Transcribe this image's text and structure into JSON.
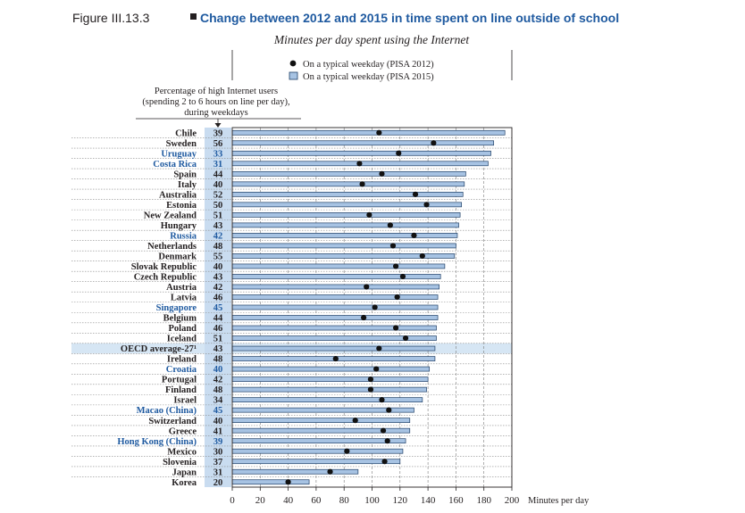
{
  "figure": {
    "label": "Figure III.13.3",
    "title": "Change between 2012 and 2015 in time spent on line outside of school",
    "subtitle": "Minutes per day spent using the Internet",
    "pct_header": [
      "Percentage of high Internet users",
      "(spending 2 to 6 hours on line per day),",
      "during weekdays"
    ],
    "x_unit": "Minutes per day"
  },
  "colors": {
    "bar_fill": "#a7c3e3",
    "bar_stroke": "#1f3f66",
    "partner_text": "#1f5aa0",
    "label_text": "#231f20",
    "highlight_band": "#d6e6f4",
    "pct_column": "#c9dcf0",
    "marker": "#111111"
  },
  "chart_data": {
    "type": "bar",
    "orientation": "horizontal",
    "title": "Change between 2012 and 2015 in time spent on line outside of school",
    "subtitle": "Minutes per day spent using the Internet",
    "xlabel": "Minutes per day",
    "xlim": [
      0,
      200
    ],
    "xticks": [
      0,
      20,
      40,
      60,
      80,
      100,
      120,
      140,
      160,
      180,
      200
    ],
    "grid": true,
    "legend_position": "top",
    "series": [
      {
        "name": "On a typical weekday (PISA 2012)",
        "type": "marker"
      },
      {
        "name": "On a typical weekday (PISA 2015)",
        "type": "bar"
      }
    ],
    "categories": [
      "Chile",
      "Sweden",
      "Uruguay",
      "Costa Rica",
      "Spain",
      "Italy",
      "Australia",
      "Estonia",
      "New Zealand",
      "Hungary",
      "Russia",
      "Netherlands",
      "Denmark",
      "Slovak Republic",
      "Czech Republic",
      "Austria",
      "Latvia",
      "Singapore",
      "Belgium",
      "Poland",
      "Iceland",
      "OECD average-27¹",
      "Ireland",
      "Croatia",
      "Portugal",
      "Finland",
      "Israel",
      "Macao (China)",
      "Switzerland",
      "Greece",
      "Hong Kong (China)",
      "Mexico",
      "Slovenia",
      "Japan",
      "Korea"
    ],
    "pct_high_users": [
      39,
      56,
      33,
      31,
      44,
      40,
      52,
      50,
      51,
      43,
      42,
      48,
      55,
      40,
      43,
      42,
      46,
      45,
      44,
      46,
      51,
      43,
      48,
      40,
      42,
      48,
      34,
      45,
      40,
      41,
      39,
      30,
      37,
      31,
      20
    ],
    "pisa_2015": [
      195,
      187,
      185,
      183,
      167,
      166,
      165,
      164,
      163,
      162,
      161,
      160,
      159,
      152,
      149,
      148,
      147,
      147,
      147,
      146,
      146,
      145,
      145,
      141,
      140,
      139,
      136,
      130,
      127,
      127,
      124,
      122,
      120,
      90,
      55
    ],
    "pisa_2012": [
      105,
      144,
      119,
      91,
      107,
      93,
      131,
      139,
      98,
      113,
      130,
      115,
      136,
      117,
      122,
      96,
      118,
      102,
      94,
      117,
      124,
      105,
      74,
      103,
      99,
      99,
      107,
      112,
      88,
      108,
      111,
      82,
      109,
      70,
      40
    ],
    "partner_flags": [
      false,
      false,
      true,
      true,
      false,
      false,
      false,
      false,
      false,
      false,
      true,
      false,
      false,
      false,
      false,
      false,
      false,
      true,
      false,
      false,
      false,
      false,
      false,
      true,
      false,
      false,
      false,
      true,
      false,
      false,
      true,
      false,
      false,
      false,
      false
    ],
    "highlight_flags": [
      false,
      false,
      false,
      false,
      false,
      false,
      false,
      false,
      false,
      false,
      false,
      false,
      false,
      false,
      false,
      false,
      false,
      false,
      false,
      false,
      false,
      true,
      false,
      false,
      false,
      false,
      false,
      false,
      false,
      false,
      false,
      false,
      false,
      false,
      false
    ]
  }
}
